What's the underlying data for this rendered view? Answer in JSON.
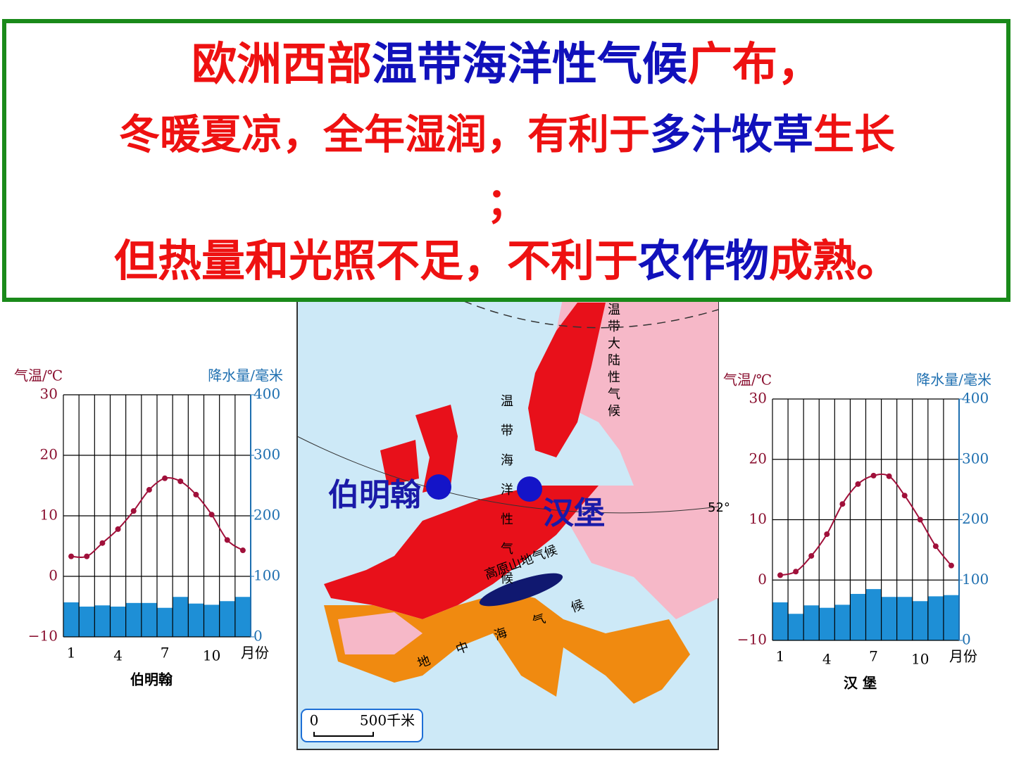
{
  "header": {
    "lines": [
      [
        {
          "text": "欧洲西部",
          "color": "#ee1111"
        },
        {
          "text": "温带海洋性气候",
          "color": "#1111bb"
        },
        {
          "text": "广布，",
          "color": "#ee1111"
        }
      ],
      [
        {
          "text": "冬暖夏凉，全年湿润，有利于",
          "color": "#ee1111"
        },
        {
          "text": "多汁牧草",
          "color": "#1111bb"
        },
        {
          "text": "生长",
          "color": "#ee1111"
        }
      ],
      [
        {
          "text": "；",
          "color": "#ee1111"
        }
      ],
      [
        {
          "text": "但热量和光照不足，不利于",
          "color": "#ee1111"
        },
        {
          "text": "农作物",
          "color": "#1111bb"
        },
        {
          "text": "成熟。",
          "color": "#ee1111"
        }
      ]
    ]
  },
  "map": {
    "labels": {
      "continental": "温带大陆性气候",
      "maritime": "温带海洋性气候",
      "highland": "高原山地气候",
      "mediterranean": "地中海气候",
      "latitude": "52°"
    },
    "cities": [
      {
        "name": "伯明翰",
        "color": "#1a1aa8"
      },
      {
        "name": "汉堡",
        "color": "#1a1aa8"
      }
    ],
    "scale": {
      "start": "0",
      "end": "500千米"
    }
  },
  "chart_data": [
    {
      "type": "climate",
      "title": "伯明翰",
      "x_label": "月份",
      "y_label": "气温/℃",
      "y2_label": "降水量/毫米",
      "x": [
        1,
        2,
        3,
        4,
        5,
        6,
        7,
        8,
        9,
        10,
        11,
        12
      ],
      "xlim": [
        0.5,
        12.5
      ],
      "xticks": [
        1,
        4,
        7,
        10
      ],
      "ylim": [
        -10,
        30
      ],
      "yticks": [
        {
          "value": -10,
          "label": "−10"
        },
        0,
        10,
        20,
        30
      ],
      "y2lim": [
        0,
        400
      ],
      "y2ticks": [
        0,
        100,
        200,
        300,
        400
      ],
      "grid": true,
      "series": [
        {
          "name": "气温",
          "type": "line",
          "color": "#a0103a",
          "values": [
            3.3,
            3.3,
            5.5,
            7.8,
            10.8,
            14.3,
            16.2,
            15.7,
            13.5,
            10.2,
            6.0,
            4.3
          ]
        },
        {
          "name": "降水量",
          "type": "bar",
          "axis": "y2",
          "color": "#1e8fd6",
          "values": [
            57,
            50,
            52,
            50,
            56,
            56,
            48,
            66,
            55,
            53,
            59,
            66
          ]
        }
      ]
    },
    {
      "type": "climate",
      "title": "汉  堡",
      "x_label": "月份",
      "y_label": "气温/℃",
      "y2_label": "降水量/毫米",
      "x": [
        1,
        2,
        3,
        4,
        5,
        6,
        7,
        8,
        9,
        10,
        11,
        12
      ],
      "xlim": [
        0.5,
        12.5
      ],
      "xticks": [
        1,
        4,
        7,
        10
      ],
      "ylim": [
        -10,
        30
      ],
      "yticks": [
        {
          "value": -10,
          "label": "−10"
        },
        0,
        10,
        20,
        30
      ],
      "y2lim": [
        0,
        400
      ],
      "y2ticks": [
        0,
        100,
        200,
        300,
        400
      ],
      "grid": true,
      "series": [
        {
          "name": "气温",
          "type": "line",
          "color": "#a0103a",
          "values": [
            0.8,
            1.4,
            4.0,
            7.6,
            12.6,
            15.9,
            17.3,
            17.2,
            14.0,
            10.0,
            5.6,
            2.4
          ]
        },
        {
          "name": "降水量",
          "type": "bar",
          "axis": "y2",
          "color": "#1e8fd6",
          "values": [
            63,
            44,
            58,
            54,
            59,
            77,
            85,
            72,
            72,
            65,
            73,
            75
          ]
        }
      ]
    }
  ]
}
